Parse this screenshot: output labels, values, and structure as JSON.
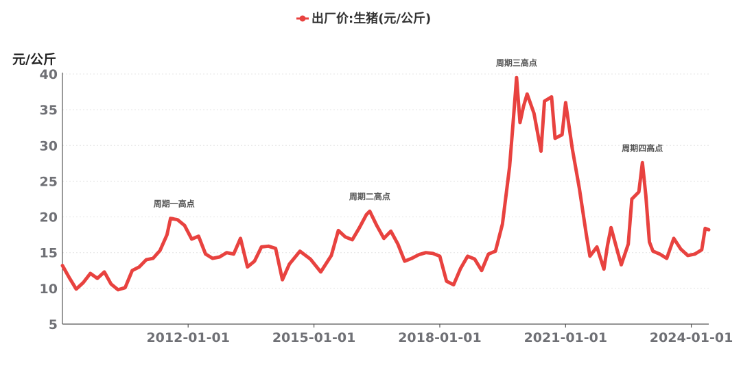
{
  "chart_data": {
    "type": "line",
    "legend_position": "top-center",
    "grid": true,
    "ylabel": "元/公斤",
    "ylim": [
      5,
      40
    ],
    "yticks": [
      5,
      10,
      15,
      20,
      25,
      30,
      35,
      40
    ],
    "xlim": [
      "2009-01-01",
      "2024-06-01"
    ],
    "xticks": [
      "2012-01-01",
      "2015-01-01",
      "2018-01-01",
      "2021-01-01",
      "2024-01-01"
    ],
    "series": [
      {
        "name": "出厂价:生猪(元/公斤)",
        "color": "#e8423f",
        "points": [
          [
            "2009-01-01",
            13.2
          ],
          [
            "2009-03-01",
            11.5
          ],
          [
            "2009-05-01",
            9.9
          ],
          [
            "2009-07-01",
            10.8
          ],
          [
            "2009-09-01",
            12.1
          ],
          [
            "2009-11-01",
            11.4
          ],
          [
            "2010-01-01",
            12.3
          ],
          [
            "2010-03-01",
            10.6
          ],
          [
            "2010-05-01",
            9.8
          ],
          [
            "2010-07-01",
            10.1
          ],
          [
            "2010-09-01",
            12.5
          ],
          [
            "2010-11-01",
            13.0
          ],
          [
            "2011-01-01",
            14.0
          ],
          [
            "2011-03-01",
            14.2
          ],
          [
            "2011-05-01",
            15.3
          ],
          [
            "2011-07-01",
            17.5
          ],
          [
            "2011-08-01",
            19.8
          ],
          [
            "2011-10-01",
            19.6
          ],
          [
            "2011-12-01",
            18.8
          ],
          [
            "2012-02-01",
            16.9
          ],
          [
            "2012-04-01",
            17.3
          ],
          [
            "2012-06-01",
            14.8
          ],
          [
            "2012-08-01",
            14.2
          ],
          [
            "2012-10-01",
            14.4
          ],
          [
            "2012-12-01",
            15.0
          ],
          [
            "2013-02-01",
            14.8
          ],
          [
            "2013-04-01",
            17.0
          ],
          [
            "2013-06-01",
            13.0
          ],
          [
            "2013-08-01",
            13.8
          ],
          [
            "2013-10-01",
            15.8
          ],
          [
            "2013-12-01",
            15.9
          ],
          [
            "2014-02-01",
            15.6
          ],
          [
            "2014-04-01",
            11.2
          ],
          [
            "2014-06-01",
            13.4
          ],
          [
            "2014-09-01",
            15.2
          ],
          [
            "2014-12-01",
            14.1
          ],
          [
            "2015-03-01",
            12.3
          ],
          [
            "2015-06-01",
            14.6
          ],
          [
            "2015-08-01",
            18.1
          ],
          [
            "2015-10-01",
            17.2
          ],
          [
            "2015-12-01",
            16.8
          ],
          [
            "2016-02-01",
            18.5
          ],
          [
            "2016-04-01",
            20.3
          ],
          [
            "2016-05-01",
            20.8
          ],
          [
            "2016-07-01",
            18.8
          ],
          [
            "2016-09-01",
            17.0
          ],
          [
            "2016-11-01",
            18.0
          ],
          [
            "2017-01-01",
            16.2
          ],
          [
            "2017-03-01",
            13.8
          ],
          [
            "2017-05-01",
            14.2
          ],
          [
            "2017-07-01",
            14.7
          ],
          [
            "2017-09-01",
            15.0
          ],
          [
            "2017-11-01",
            14.9
          ],
          [
            "2018-01-01",
            14.5
          ],
          [
            "2018-03-01",
            11.0
          ],
          [
            "2018-05-01",
            10.5
          ],
          [
            "2018-07-01",
            12.8
          ],
          [
            "2018-09-01",
            14.5
          ],
          [
            "2018-11-01",
            14.1
          ],
          [
            "2019-01-01",
            12.5
          ],
          [
            "2019-03-01",
            14.8
          ],
          [
            "2019-05-01",
            15.2
          ],
          [
            "2019-07-01",
            19.0
          ],
          [
            "2019-09-01",
            27.0
          ],
          [
            "2019-10-01",
            33.0
          ],
          [
            "2019-11-01",
            39.5
          ],
          [
            "2019-12-01",
            33.2
          ],
          [
            "2020-01-01",
            35.5
          ],
          [
            "2020-02-01",
            37.2
          ],
          [
            "2020-04-01",
            34.5
          ],
          [
            "2020-06-01",
            29.2
          ],
          [
            "2020-07-01",
            36.2
          ],
          [
            "2020-09-01",
            36.8
          ],
          [
            "2020-10-01",
            31.0
          ],
          [
            "2020-12-01",
            31.5
          ],
          [
            "2021-01-01",
            36.0
          ],
          [
            "2021-03-01",
            29.5
          ],
          [
            "2021-05-01",
            24.0
          ],
          [
            "2021-07-01",
            17.5
          ],
          [
            "2021-08-01",
            14.5
          ],
          [
            "2021-10-01",
            15.8
          ],
          [
            "2021-12-01",
            12.7
          ],
          [
            "2022-01-01",
            16.0
          ],
          [
            "2022-02-01",
            18.5
          ],
          [
            "2022-04-01",
            15.0
          ],
          [
            "2022-05-01",
            13.3
          ],
          [
            "2022-07-01",
            16.2
          ],
          [
            "2022-08-01",
            22.5
          ],
          [
            "2022-10-01",
            23.5
          ],
          [
            "2022-11-01",
            27.6
          ],
          [
            "2022-12-01",
            23.0
          ],
          [
            "2023-01-01",
            16.5
          ],
          [
            "2023-02-01",
            15.2
          ],
          [
            "2023-04-01",
            14.8
          ],
          [
            "2023-06-01",
            14.2
          ],
          [
            "2023-08-01",
            17.0
          ],
          [
            "2023-10-01",
            15.5
          ],
          [
            "2023-12-01",
            14.6
          ],
          [
            "2024-02-01",
            14.8
          ],
          [
            "2024-04-01",
            15.4
          ],
          [
            "2024-05-01",
            18.4
          ],
          [
            "2024-06-01",
            18.2
          ]
        ]
      }
    ],
    "annotations": [
      {
        "text": "周期一高点",
        "x": "2011-09-01",
        "y": 19.8
      },
      {
        "text": "周期二高点",
        "x": "2016-05-01",
        "y": 20.8
      },
      {
        "text": "周期三高点",
        "x": "2019-11-01",
        "y": 39.5
      },
      {
        "text": "周期四高点",
        "x": "2022-11-01",
        "y": 27.6
      }
    ]
  }
}
